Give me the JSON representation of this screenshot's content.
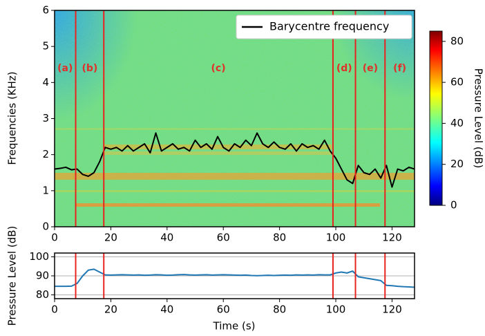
{
  "chart_data": [
    {
      "type": "line",
      "ylabel": "Frequencies (KHz)",
      "xlim": [
        0,
        128
      ],
      "xticks": [
        0,
        20,
        40,
        60,
        80,
        100,
        120
      ],
      "ylim": [
        0,
        6
      ],
      "yticks": [
        0,
        1,
        2,
        3,
        4,
        5,
        6
      ],
      "legend": "upper right",
      "events": [
        7.5,
        17.5,
        99,
        107,
        117.5
      ],
      "event_color": "#e8231f",
      "regions": [
        "(a)",
        "(b)",
        "(c)",
        "(d)",
        "(e)",
        "(f)"
      ],
      "colorbar": {
        "label": "Pressure Level (dB)",
        "lim": [
          0,
          85
        ],
        "ticks": [
          0,
          20,
          40,
          60,
          80
        ]
      },
      "series": [
        {
          "name": "Barycentre frequency",
          "color": "#000000",
          "x": [
            0,
            2,
            4,
            6,
            8,
            10,
            12,
            14,
            16,
            18,
            20,
            22,
            24,
            26,
            28,
            30,
            32,
            34,
            36,
            38,
            40,
            42,
            44,
            46,
            48,
            50,
            52,
            54,
            56,
            58,
            60,
            62,
            64,
            66,
            68,
            70,
            72,
            74,
            76,
            78,
            80,
            82,
            84,
            86,
            88,
            90,
            92,
            94,
            96,
            98,
            100,
            102,
            104,
            106,
            108,
            110,
            112,
            114,
            116,
            118,
            120,
            122,
            124,
            126,
            128
          ],
          "values": [
            1.6,
            1.62,
            1.65,
            1.58,
            1.6,
            1.45,
            1.4,
            1.5,
            1.8,
            2.2,
            2.15,
            2.2,
            2.1,
            2.25,
            2.1,
            2.2,
            2.3,
            2.05,
            2.6,
            2.1,
            2.2,
            2.3,
            2.15,
            2.2,
            2.1,
            2.4,
            2.2,
            2.3,
            2.15,
            2.5,
            2.2,
            2.1,
            2.3,
            2.2,
            2.4,
            2.25,
            2.6,
            2.3,
            2.2,
            2.35,
            2.2,
            2.15,
            2.3,
            2.1,
            2.3,
            2.2,
            2.25,
            2.15,
            2.4,
            2.1,
            1.9,
            1.6,
            1.3,
            1.2,
            1.7,
            1.5,
            1.45,
            1.6,
            1.35,
            1.7,
            1.1,
            1.6,
            1.55,
            1.65,
            1.6
          ]
        }
      ]
    },
    {
      "type": "line",
      "xlabel": "Time (s)",
      "ylabel": "Pressure Level (dB)",
      "xlim": [
        0,
        128
      ],
      "xticks": [
        0,
        20,
        40,
        60,
        80,
        100,
        120
      ],
      "ylim": [
        78,
        102
      ],
      "yticks": [
        80,
        90,
        100
      ],
      "grid": true,
      "events": [
        7.5,
        17.5,
        99,
        107,
        117.5
      ],
      "event_color": "#e8231f",
      "series": [
        {
          "color": "#1f77b4",
          "x": [
            0,
            2,
            4,
            6,
            8,
            10,
            12,
            14,
            16,
            18,
            20,
            22,
            24,
            26,
            28,
            30,
            32,
            34,
            36,
            38,
            40,
            42,
            44,
            46,
            48,
            50,
            52,
            54,
            56,
            58,
            60,
            62,
            64,
            66,
            68,
            70,
            72,
            74,
            76,
            78,
            80,
            82,
            84,
            86,
            88,
            90,
            92,
            94,
            96,
            98,
            100,
            102,
            104,
            106,
            108,
            110,
            112,
            114,
            116,
            118,
            120,
            122,
            124,
            126,
            128
          ],
          "values": [
            84.5,
            84.5,
            84.5,
            84.6,
            86,
            90,
            93,
            93.5,
            92,
            90.5,
            90.4,
            90.5,
            90.6,
            90.5,
            90.4,
            90.5,
            90.3,
            90.4,
            90.6,
            90.5,
            90.3,
            90.4,
            90.6,
            90.7,
            90.5,
            90.4,
            90.5,
            90.6,
            90.4,
            90.5,
            90.6,
            90.5,
            90.4,
            90.3,
            90.4,
            90.2,
            90.1,
            90.2,
            90.3,
            90.2,
            90.3,
            90.4,
            90.3,
            90.5,
            90.4,
            90.5,
            90.4,
            90.6,
            90.5,
            90.5,
            91.5,
            92,
            91.5,
            92.5,
            89.5,
            89,
            88.5,
            88,
            87.5,
            85,
            84.8,
            84.5,
            84.3,
            84.2,
            84
          ]
        }
      ]
    }
  ]
}
